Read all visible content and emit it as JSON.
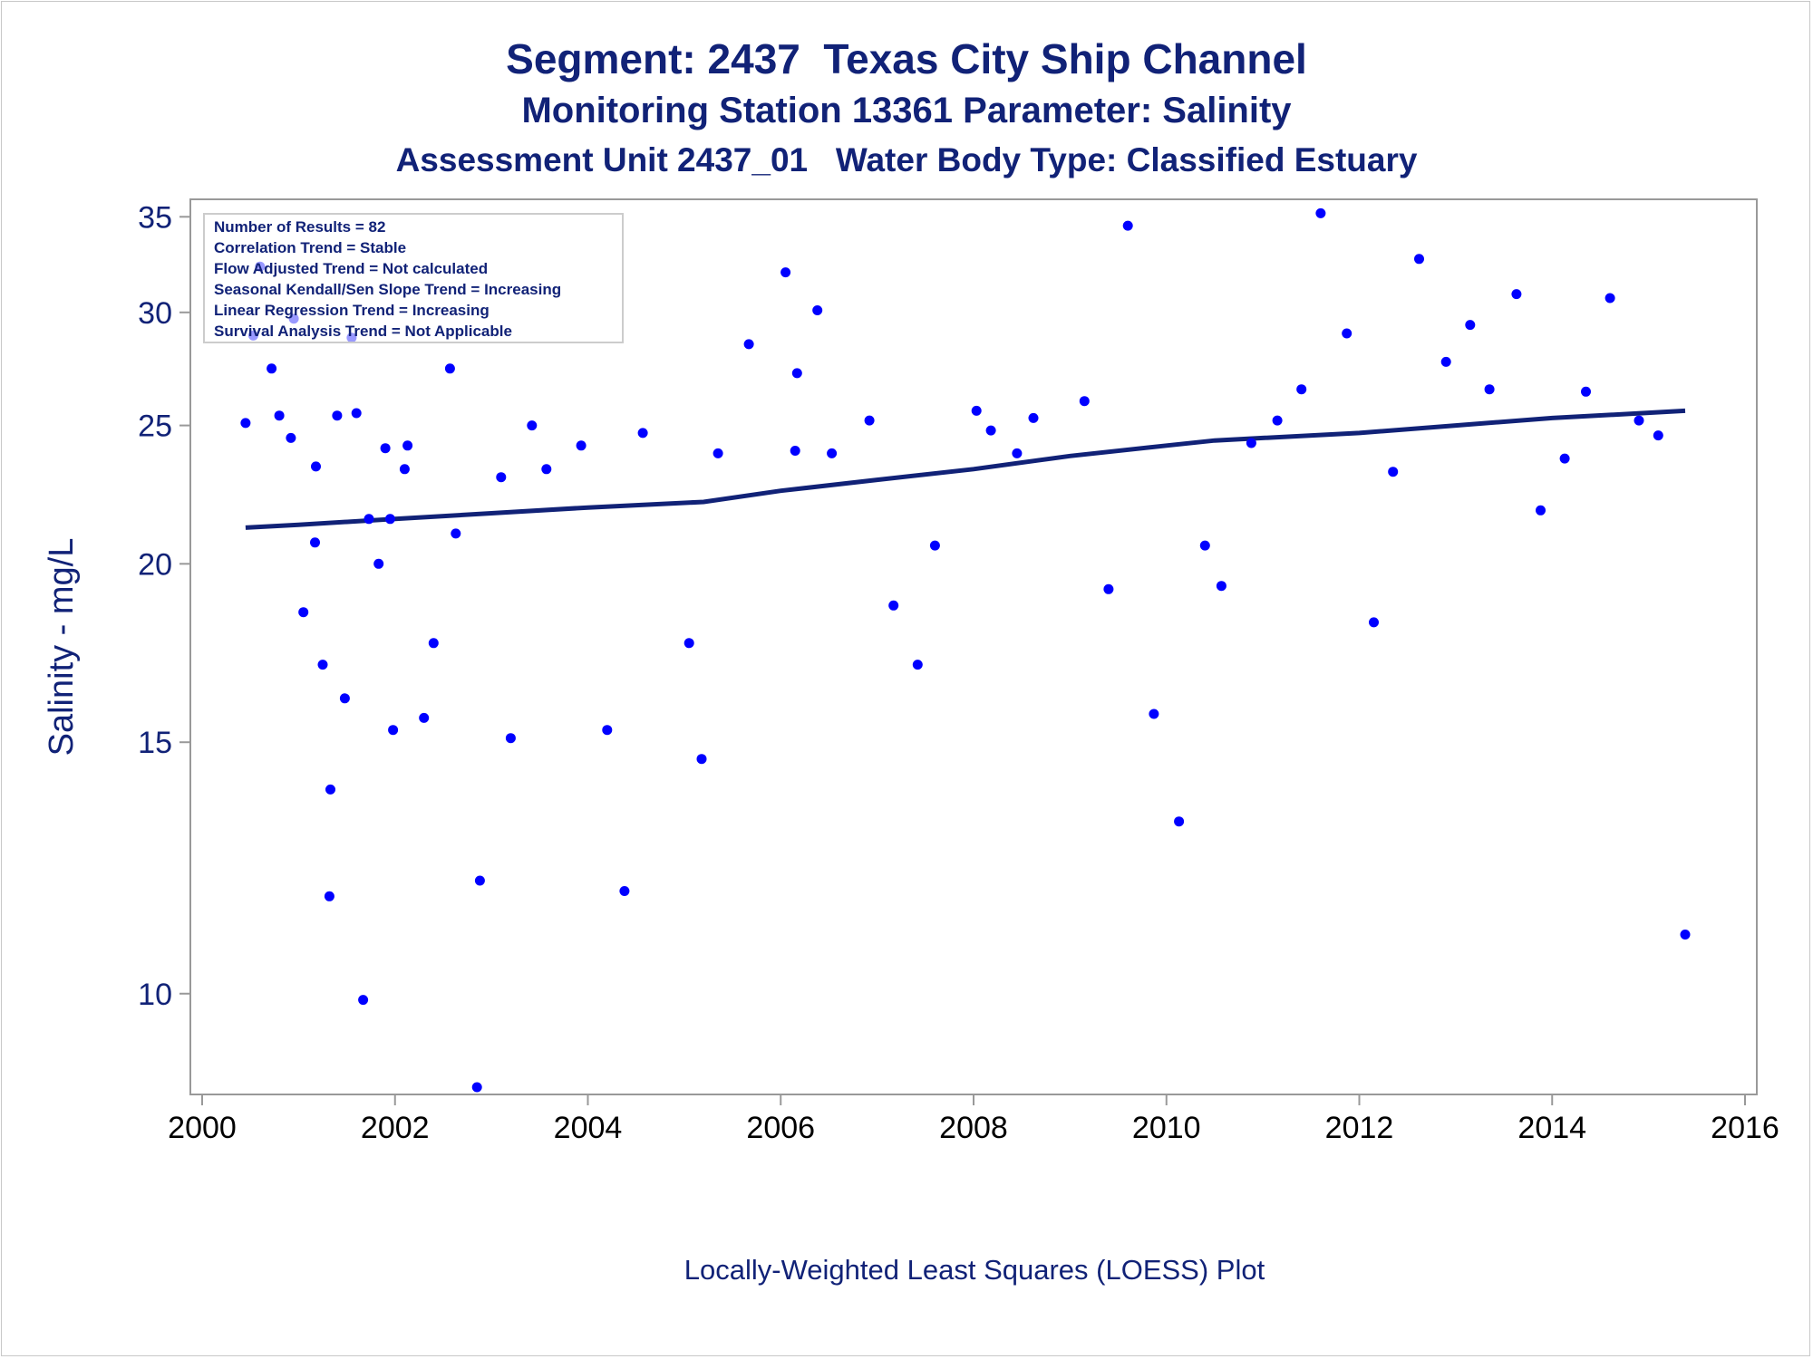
{
  "titles": {
    "line1": "Segment: 2437  Texas City Ship Channel",
    "line2": "Monitoring Station 13361 Parameter: Salinity",
    "line3": "Assessment Unit 2437_01   Water Body Type: Classified Estuary"
  },
  "stats_box": [
    "Number of Results = 82",
    "Correlation Trend = Stable",
    "Flow Adjusted Trend = Not calculated",
    "Seasonal Kendall/Sen Slope Trend = Increasing",
    "Linear Regression Trend = Increasing",
    "Survival Analysis Trend = Not Applicable"
  ],
  "footnote": "Locally-Weighted Least Squares (LOESS) Plot",
  "colors": {
    "axis_text": "#112277",
    "points": "#0000ff",
    "trend_line": "#112277",
    "frame": "#999999"
  },
  "chart_data": {
    "type": "scatter",
    "title": "Segment: 2437  Texas City Ship Channel",
    "xlabel": "",
    "ylabel": "Salinity - mg/L",
    "xlim": [
      2000,
      2016
    ],
    "ylim": [
      8.5,
      36
    ],
    "y_scale": "log",
    "xticks": [
      2000,
      2002,
      2004,
      2006,
      2008,
      2010,
      2012,
      2014,
      2016
    ],
    "yticks": [
      10,
      15,
      20,
      25,
      30,
      35
    ],
    "grid": false,
    "series": [
      {
        "kind": "points",
        "points": [
          [
            2000.45,
            25.1
          ],
          [
            2000.53,
            28.9
          ],
          [
            2000.6,
            32.3
          ],
          [
            2000.72,
            27.4
          ],
          [
            2000.8,
            25.4
          ],
          [
            2000.92,
            24.5
          ],
          [
            2000.95,
            29.7
          ],
          [
            2001.05,
            18.5
          ],
          [
            2001.17,
            20.7
          ],
          [
            2001.18,
            23.4
          ],
          [
            2001.25,
            17.0
          ],
          [
            2001.32,
            11.7
          ],
          [
            2001.33,
            13.9
          ],
          [
            2001.4,
            25.4
          ],
          [
            2001.48,
            16.1
          ],
          [
            2001.55,
            28.8
          ],
          [
            2001.6,
            25.5
          ],
          [
            2001.67,
            9.9
          ],
          [
            2001.73,
            21.5
          ],
          [
            2001.83,
            20.0
          ],
          [
            2001.9,
            24.1
          ],
          [
            2001.95,
            21.5
          ],
          [
            2001.98,
            15.3
          ],
          [
            2002.1,
            23.3
          ],
          [
            2002.13,
            24.2
          ],
          [
            2002.3,
            15.6
          ],
          [
            2002.4,
            17.6
          ],
          [
            2002.57,
            27.4
          ],
          [
            2002.63,
            21.0
          ],
          [
            2002.85,
            8.6
          ],
          [
            2002.88,
            12.0
          ],
          [
            2003.1,
            23.0
          ],
          [
            2003.2,
            15.1
          ],
          [
            2003.42,
            25.0
          ],
          [
            2003.57,
            23.3
          ],
          [
            2003.93,
            24.2
          ],
          [
            2004.2,
            15.3
          ],
          [
            2004.38,
            11.8
          ],
          [
            2004.57,
            24.7
          ],
          [
            2005.05,
            17.6
          ],
          [
            2005.18,
            14.6
          ],
          [
            2005.35,
            23.9
          ],
          [
            2005.67,
            28.5
          ],
          [
            2006.05,
            32.0
          ],
          [
            2006.15,
            24.0
          ],
          [
            2006.17,
            27.2
          ],
          [
            2006.38,
            30.1
          ],
          [
            2006.53,
            23.9
          ],
          [
            2006.92,
            25.2
          ],
          [
            2007.17,
            18.7
          ],
          [
            2007.42,
            17.0
          ],
          [
            2007.6,
            20.6
          ],
          [
            2008.03,
            25.6
          ],
          [
            2008.18,
            24.8
          ],
          [
            2008.45,
            23.9
          ],
          [
            2008.62,
            25.3
          ],
          [
            2009.15,
            26.0
          ],
          [
            2009.4,
            19.2
          ],
          [
            2009.6,
            34.5
          ],
          [
            2009.87,
            15.7
          ],
          [
            2010.13,
            13.2
          ],
          [
            2010.4,
            20.6
          ],
          [
            2010.57,
            19.3
          ],
          [
            2010.88,
            24.3
          ],
          [
            2011.15,
            25.2
          ],
          [
            2011.4,
            26.5
          ],
          [
            2011.6,
            35.2
          ],
          [
            2011.87,
            29.0
          ],
          [
            2012.15,
            18.2
          ],
          [
            2012.35,
            23.2
          ],
          [
            2012.62,
            32.7
          ],
          [
            2012.9,
            27.7
          ],
          [
            2013.15,
            29.4
          ],
          [
            2013.35,
            26.5
          ],
          [
            2013.63,
            30.9
          ],
          [
            2013.88,
            21.8
          ],
          [
            2014.13,
            23.7
          ],
          [
            2014.35,
            26.4
          ],
          [
            2014.6,
            30.7
          ],
          [
            2014.9,
            25.2
          ],
          [
            2015.1,
            24.6
          ],
          [
            2015.38,
            11.0
          ]
        ]
      },
      {
        "kind": "loess",
        "points": [
          [
            2000.45,
            21.2
          ],
          [
            2001.0,
            21.3
          ],
          [
            2002.0,
            21.5
          ],
          [
            2003.0,
            21.7
          ],
          [
            2004.0,
            21.9
          ],
          [
            2005.2,
            22.1
          ],
          [
            2006.0,
            22.5
          ],
          [
            2007.0,
            22.9
          ],
          [
            2008.0,
            23.3
          ],
          [
            2009.0,
            23.8
          ],
          [
            2010.0,
            24.2
          ],
          [
            2010.5,
            24.4
          ],
          [
            2011.0,
            24.5
          ],
          [
            2012.0,
            24.7
          ],
          [
            2013.0,
            25.0
          ],
          [
            2014.0,
            25.3
          ],
          [
            2015.38,
            25.6
          ]
        ]
      }
    ]
  }
}
